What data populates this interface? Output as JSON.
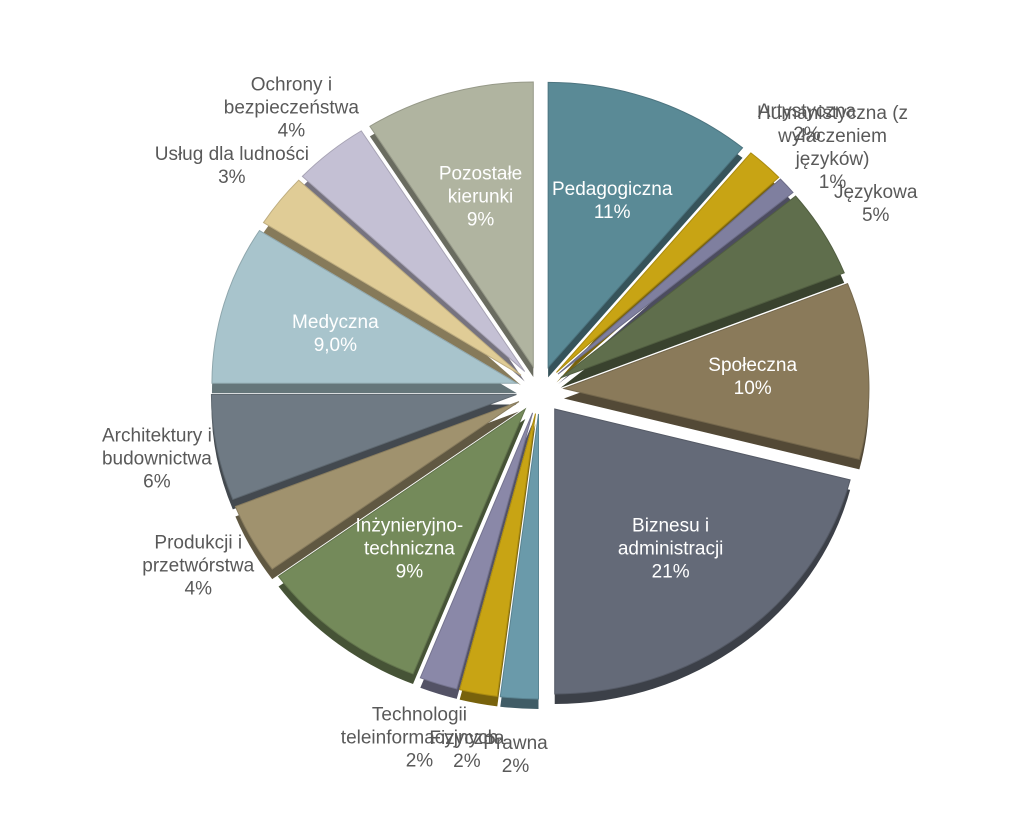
{
  "chart_data": {
    "type": "pie",
    "categories": [
      "Pedagogiczna",
      "Artystyczna",
      "Humanistyczna (z wyłaczeniem języków)",
      "Językowa",
      "Społeczna",
      "Biznesu i administracji",
      "Prawna",
      "Fizyczna",
      "Technologii teleinformacyjnych",
      "Inżynieryjno-techniczna",
      "Produkcji i przetwórstwa",
      "Architektury i budownictwa",
      "Medyczna",
      "Usług dla ludności",
      "Ochrony i bezpieczeństwa",
      "Pozostałe kierunki"
    ],
    "values": [
      11,
      2,
      1,
      5,
      10,
      21,
      2,
      2,
      2,
      9,
      4,
      6,
      9,
      3,
      4,
      9
    ],
    "value_labels": [
      "11%",
      "2%",
      "1%",
      "5%",
      "10%",
      "21%",
      "2%",
      "2%",
      "2%",
      "9%",
      "4%",
      "6%",
      "9,0%",
      "3%",
      "4%",
      "9%"
    ],
    "colors": [
      "#5a8a96",
      "#c8a414",
      "#7f7f9f",
      "#5f6e4c",
      "#8a7a5a",
      "#646a78",
      "#6a9aaa",
      "#c8a414",
      "#8a88a8",
      "#748a5a",
      "#a0926e",
      "#6f7a84",
      "#a8c4cc",
      "#e0cc96",
      "#c4c0d4",
      "#b0b4a0"
    ]
  }
}
